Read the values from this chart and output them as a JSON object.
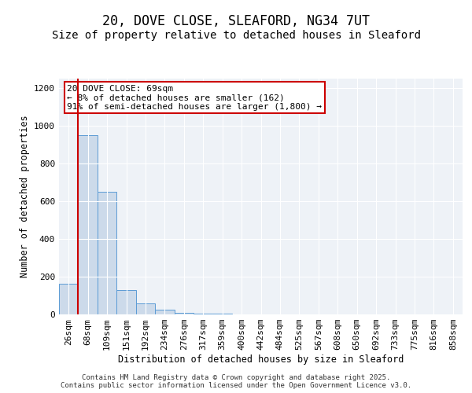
{
  "title": "20, DOVE CLOSE, SLEAFORD, NG34 7UT",
  "subtitle": "Size of property relative to detached houses in Sleaford",
  "xlabel": "Distribution of detached houses by size in Sleaford",
  "ylabel": "Number of detached properties",
  "bar_labels": [
    "26sqm",
    "68sqm",
    "109sqm",
    "151sqm",
    "192sqm",
    "234sqm",
    "276sqm",
    "317sqm",
    "359sqm",
    "400sqm",
    "442sqm",
    "484sqm",
    "525sqm",
    "567sqm",
    "608sqm",
    "650sqm",
    "692sqm",
    "733sqm",
    "775sqm",
    "816sqm",
    "858sqm"
  ],
  "bar_values": [
    162,
    950,
    650,
    130,
    57,
    27,
    10,
    5,
    3,
    2,
    1,
    1,
    0,
    0,
    0,
    0,
    0,
    0,
    0,
    0,
    0
  ],
  "bar_color": "#ccdaea",
  "bar_edge_color": "#5b9bd5",
  "vline_color": "#cc0000",
  "annotation_text": "20 DOVE CLOSE: 69sqm\n← 8% of detached houses are smaller (162)\n91% of semi-detached houses are larger (1,800) →",
  "annotation_box_color": "#cc0000",
  "ylim": [
    0,
    1250
  ],
  "yticks": [
    0,
    200,
    400,
    600,
    800,
    1000,
    1200
  ],
  "bg_color": "#eef2f7",
  "footer": "Contains HM Land Registry data © Crown copyright and database right 2025.\nContains public sector information licensed under the Open Government Licence v3.0.",
  "title_fontsize": 12,
  "subtitle_fontsize": 10,
  "tick_fontsize": 8,
  "ylabel_fontsize": 8.5,
  "xlabel_fontsize": 8.5,
  "footer_fontsize": 6.5,
  "annot_fontsize": 8
}
